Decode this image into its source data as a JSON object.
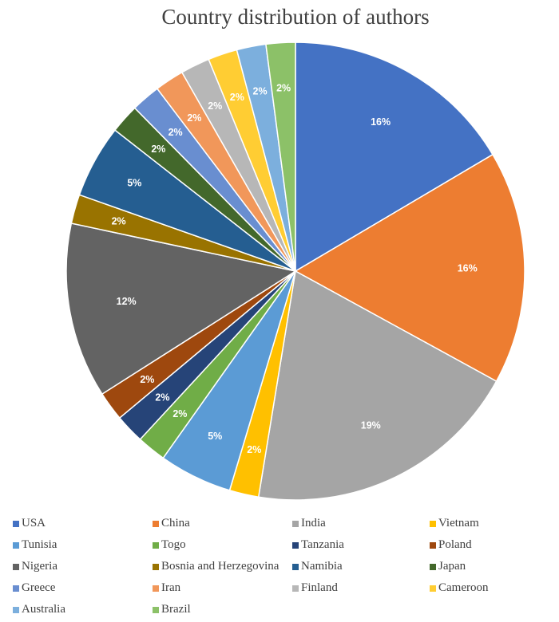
{
  "chart_data": {
    "type": "pie",
    "title": "Country distribution of authors",
    "slices": [
      {
        "label": "USA",
        "value": 16,
        "display": "16%",
        "color": "#4472C4"
      },
      {
        "label": "China",
        "value": 16,
        "display": "16%",
        "color": "#ED7D31"
      },
      {
        "label": "India",
        "value": 19,
        "display": "19%",
        "color": "#A5A5A5"
      },
      {
        "label": "Vietnam",
        "value": 2,
        "display": "2%",
        "color": "#FFC000"
      },
      {
        "label": "Tunisia",
        "value": 5,
        "display": "5%",
        "color": "#5B9BD5"
      },
      {
        "label": "Togo",
        "value": 2,
        "display": "2%",
        "color": "#70AD47"
      },
      {
        "label": "Tanzania",
        "value": 2,
        "display": "2%",
        "color": "#264478"
      },
      {
        "label": "Poland",
        "value": 2,
        "display": "2%",
        "color": "#9E480E"
      },
      {
        "label": "Nigeria",
        "value": 12,
        "display": "12%",
        "color": "#636363"
      },
      {
        "label": "Bosnia and Herzegovina",
        "value": 2,
        "display": "2%",
        "color": "#997300"
      },
      {
        "label": "Namibia",
        "value": 5,
        "display": "5%",
        "color": "#255E91"
      },
      {
        "label": "Japan",
        "value": 2,
        "display": "2%",
        "color": "#43682B"
      },
      {
        "label": "Greece",
        "value": 2,
        "display": "2%",
        "color": "#698ED0"
      },
      {
        "label": "Iran",
        "value": 2,
        "display": "2%",
        "color": "#F1975A"
      },
      {
        "label": "Finland",
        "value": 2,
        "display": "2%",
        "color": "#B7B7B7"
      },
      {
        "label": "Cameroon",
        "value": 2,
        "display": "2%",
        "color": "#FFCD33"
      },
      {
        "label": "Australia",
        "value": 2,
        "display": "2%",
        "color": "#7CAFDD"
      },
      {
        "label": "Brazil",
        "value": 2,
        "display": "2%",
        "color": "#8CC168"
      }
    ],
    "legend_position": "bottom"
  }
}
